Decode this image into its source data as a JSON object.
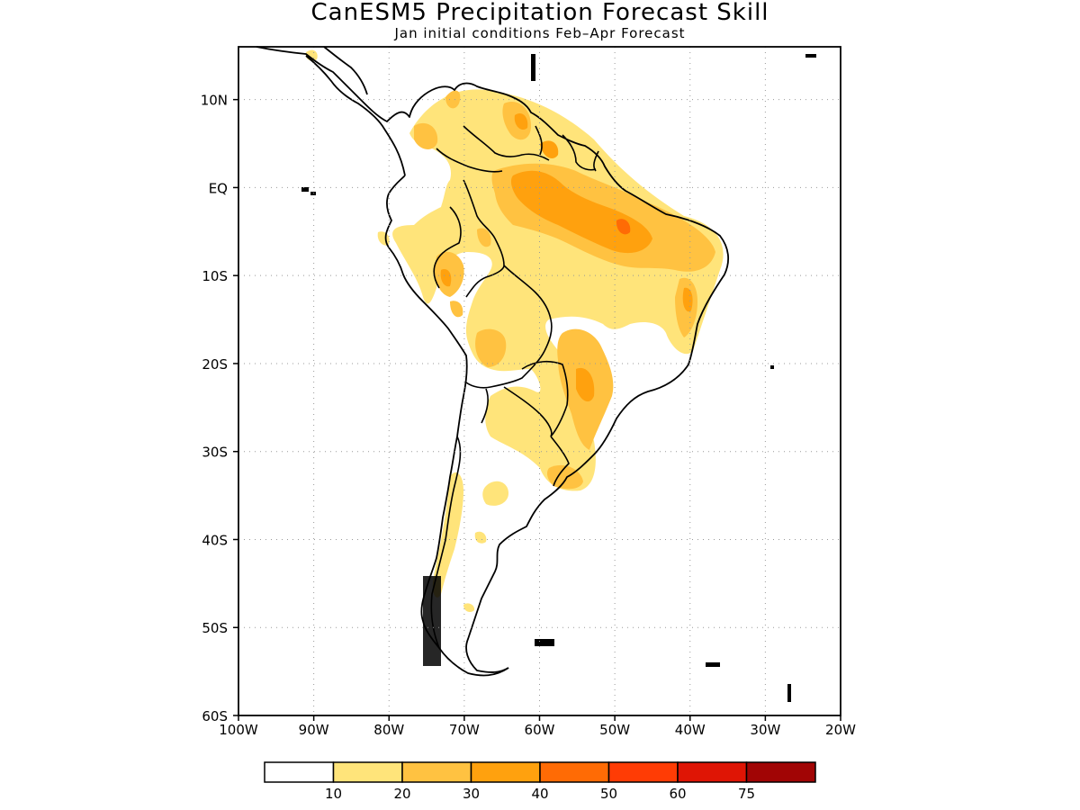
{
  "title": "CanESM5 Precipitation Forecast Skill",
  "subtitle": "Jan initial conditions  Feb–Apr Forecast",
  "map": {
    "lon_range": [
      -100,
      -20
    ],
    "lat_range": [
      -60,
      16
    ],
    "lat_ticks": [
      {
        "value": 10,
        "label": "10N"
      },
      {
        "value": 0,
        "label": "EQ"
      },
      {
        "value": -10,
        "label": "10S"
      },
      {
        "value": -20,
        "label": "20S"
      },
      {
        "value": -30,
        "label": "30S"
      },
      {
        "value": -40,
        "label": "40S"
      },
      {
        "value": -50,
        "label": "50S"
      },
      {
        "value": -60,
        "label": "60S"
      }
    ],
    "lon_ticks": [
      {
        "value": -100,
        "label": "100W"
      },
      {
        "value": -90,
        "label": "90W"
      },
      {
        "value": -80,
        "label": "80W"
      },
      {
        "value": -70,
        "label": "70W"
      },
      {
        "value": -60,
        "label": "60W"
      },
      {
        "value": -50,
        "label": "50W"
      },
      {
        "value": -40,
        "label": "40W"
      },
      {
        "value": -30,
        "label": "30W"
      },
      {
        "value": -20,
        "label": "20W"
      }
    ],
    "grid": true
  },
  "colorbar": {
    "colors": [
      "#ffffff",
      "#ffe47a",
      "#ffc241",
      "#ffa10e",
      "#ff6b05",
      "#ff3c05",
      "#df1505",
      "#a10505"
    ],
    "labels": [
      "10",
      "20",
      "30",
      "40",
      "50",
      "60",
      "75"
    ]
  }
}
